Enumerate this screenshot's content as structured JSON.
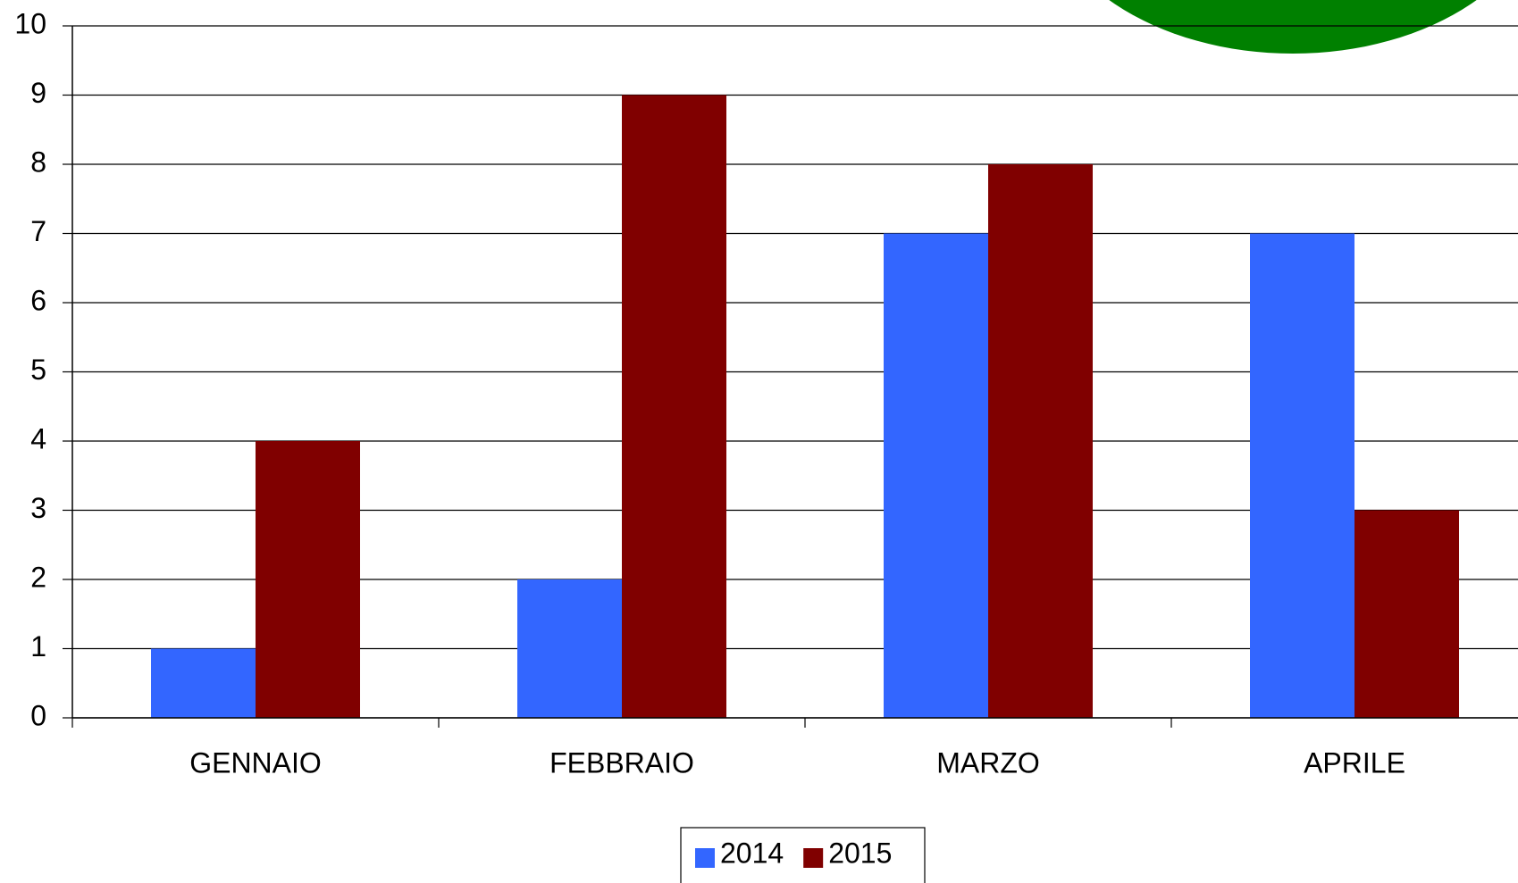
{
  "chart_data": {
    "type": "bar",
    "categories": [
      "GENNAIO",
      "FEBBRAIO",
      "MARZO",
      "APRILE"
    ],
    "series": [
      {
        "name": "2014",
        "color": "#3366ff",
        "values": [
          1,
          2,
          7,
          7
        ]
      },
      {
        "name": "2015",
        "color": "#800000",
        "values": [
          4,
          9,
          8,
          3
        ]
      }
    ],
    "ylim": [
      0,
      10
    ],
    "yticks": [
      0,
      1,
      2,
      3,
      4,
      5,
      6,
      7,
      8,
      9,
      10
    ],
    "grid": true,
    "legend": "bottom"
  }
}
